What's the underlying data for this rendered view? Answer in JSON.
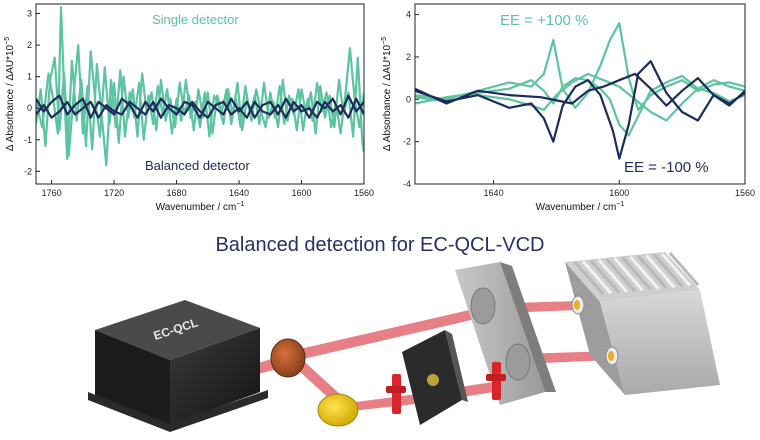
{
  "title": "Balanced detection for EC-QCL-VCD",
  "device_label": "EC-QCL",
  "colors": {
    "teal": "#5cc4a0",
    "navy": "#1e2b5c",
    "beam": "#e0555e",
    "title": "#27306b"
  },
  "chart_data": [
    {
      "type": "line",
      "xlabel": "Wavenumber / cm",
      "xlabel_sup": "−1",
      "ylabel": "Δ Absorbance / ΔAU*10",
      "ylabel_sup": "−5",
      "xlim": [
        1770,
        1560
      ],
      "ylim": [
        -2.4,
        3.3
      ],
      "x_ticks": [
        "1760",
        "1720",
        "1680",
        "1640",
        "1600",
        "1560"
      ],
      "x_tick_values": [
        1760,
        1720,
        1680,
        1640,
        1600,
        1560
      ],
      "y_ticks": [
        "3",
        "2",
        "1",
        "0",
        "-1",
        "-2"
      ],
      "y_tick_values": [
        3,
        2,
        1,
        0,
        -1,
        -2
      ],
      "annotations": [
        {
          "text": "Single detector",
          "color": "#5cc4a0"
        },
        {
          "text": "Balanced detector",
          "color": "#1e2b5c"
        }
      ],
      "series": [
        {
          "color": "#5cc4a0",
          "x": [
            1770,
            1766,
            1762,
            1759,
            1756,
            1754,
            1752,
            1750,
            1747,
            1744,
            1741,
            1738,
            1735,
            1732,
            1729,
            1726,
            1723,
            1720,
            1717,
            1714,
            1711,
            1708,
            1705,
            1702,
            1699,
            1696,
            1693,
            1690,
            1687,
            1684,
            1681,
            1678,
            1675,
            1672,
            1669,
            1666,
            1663,
            1660,
            1657,
            1654,
            1651,
            1648,
            1645,
            1642,
            1639,
            1636,
            1633,
            1630,
            1627,
            1624,
            1621,
            1618,
            1615,
            1612,
            1609,
            1606,
            1603,
            1600,
            1597,
            1594,
            1591,
            1588,
            1585,
            1582,
            1579,
            1576,
            1573,
            1570,
            1567,
            1564,
            1561,
            1560
          ],
          "y": [
            0.2,
            -0.6,
            1.1,
            0.3,
            -0.8,
            3.2,
            0.6,
            -1.6,
            1.5,
            -0.4,
            0.9,
            -1.2,
            1.8,
            0.2,
            -0.9,
            1.3,
            -0.5,
            0.8,
            -1.1,
            1.0,
            -0.3,
            0.6,
            -0.9,
            1.1,
            -0.2,
            0.5,
            -0.7,
            0.9,
            -0.4,
            0.3,
            -0.6,
            0.8,
            -0.2,
            0.4,
            -0.7,
            0.6,
            -0.3,
            0.5,
            -0.8,
            0.4,
            -0.1,
            0.6,
            -0.5,
            0.3,
            -0.6,
            0.7,
            -0.2,
            0.4,
            -0.5,
            0.8,
            -0.3,
            0.2,
            -0.6,
            0.9,
            -0.4,
            0.3,
            -0.7,
            0.6,
            -0.2,
            0.5,
            -0.8,
            0.7,
            -0.3,
            0.4,
            -0.6,
            0.9,
            -0.2,
            0.5,
            -0.9,
            1.6,
            -1.1,
            -1.4
          ]
        },
        {
          "color": "#5cc4a0",
          "x": [
            1770,
            1767,
            1764,
            1761,
            1758,
            1755,
            1752,
            1749,
            1746,
            1743,
            1740,
            1737,
            1734,
            1731,
            1728,
            1725,
            1722,
            1719,
            1716,
            1713,
            1710,
            1707,
            1704,
            1701,
            1698,
            1695,
            1692,
            1689,
            1686,
            1683,
            1680,
            1677,
            1674,
            1671,
            1668,
            1665,
            1662,
            1659,
            1656,
            1653,
            1650,
            1647,
            1644,
            1641,
            1638,
            1635,
            1632,
            1629,
            1626,
            1623,
            1620,
            1617,
            1614,
            1611,
            1608,
            1605,
            1602,
            1599,
            1596,
            1593,
            1590,
            1587,
            1584,
            1581,
            1578,
            1575,
            1572,
            1569,
            1566,
            1563,
            1560
          ],
          "y": [
            -0.5,
            0.6,
            -1.2,
            0.9,
            1.6,
            -0.7,
            1.1,
            -1.5,
            0.4,
            2.0,
            -0.8,
            0.7,
            -1.3,
            1.4,
            -0.2,
            -1.8,
            0.9,
            -0.6,
            1.2,
            -0.9,
            0.5,
            -0.3,
            0.8,
            -1.0,
            0.4,
            -0.5,
            0.7,
            -0.2,
            0.6,
            -0.8,
            0.3,
            -0.4,
            0.9,
            -0.3,
            0.2,
            -0.6,
            0.5,
            -0.9,
            0.4,
            0.1,
            -0.5,
            0.6,
            -0.2,
            0.8,
            -0.7,
            0.3,
            -0.4,
            0.6,
            -0.1,
            -0.6,
            0.5,
            -0.3,
            0.7,
            -0.5,
            0.4,
            -0.2,
            0.6,
            -0.7,
            0.3,
            -0.4,
            0.8,
            -0.1,
            0.5,
            -0.6,
            0.2,
            -0.8,
            0.4,
            1.9,
            0.3,
            -0.6,
            0.5
          ]
        },
        {
          "color": "#1e2b5c",
          "x": [
            1770,
            1765,
            1760,
            1755,
            1750,
            1745,
            1740,
            1735,
            1730,
            1725,
            1720,
            1715,
            1710,
            1705,
            1700,
            1695,
            1690,
            1685,
            1680,
            1675,
            1670,
            1665,
            1660,
            1655,
            1650,
            1645,
            1640,
            1635,
            1630,
            1625,
            1620,
            1615,
            1610,
            1605,
            1600,
            1595,
            1590,
            1585,
            1580,
            1575,
            1570,
            1565,
            1560
          ],
          "y": [
            0.3,
            -0.1,
            0.2,
            0.4,
            -0.2,
            0.1,
            0.3,
            -0.3,
            0.2,
            0.0,
            -0.2,
            0.3,
            0.1,
            -0.3,
            0.2,
            -0.1,
            0.3,
            0.0,
            -0.2,
            0.2,
            0.1,
            -0.3,
            0.2,
            0.0,
            -0.2,
            0.3,
            -0.1,
            0.2,
            -0.3,
            0.1,
            0.2,
            -0.2,
            0.3,
            -0.1,
            0.1,
            -0.3,
            0.2,
            0.0,
            0.3,
            -0.2,
            0.4,
            -0.1,
            0.2
          ]
        },
        {
          "color": "#1e2b5c",
          "x": [
            1770,
            1765,
            1760,
            1755,
            1750,
            1745,
            1740,
            1735,
            1730,
            1725,
            1720,
            1715,
            1710,
            1705,
            1700,
            1695,
            1690,
            1685,
            1680,
            1675,
            1670,
            1665,
            1660,
            1655,
            1650,
            1645,
            1640,
            1635,
            1630,
            1625,
            1620,
            1615,
            1610,
            1605,
            1600,
            1595,
            1590,
            1585,
            1580,
            1575,
            1570,
            1565,
            1560
          ],
          "y": [
            -0.2,
            0.1,
            -0.3,
            -0.1,
            0.2,
            -0.2,
            0.0,
            0.2,
            -0.3,
            0.1,
            -0.1,
            -0.2,
            0.2,
            0.0,
            -0.2,
            0.2,
            -0.3,
            0.1,
            0.0,
            -0.2,
            0.2,
            -0.1,
            -0.3,
            0.1,
            0.2,
            -0.2,
            0.0,
            -0.3,
            0.2,
            -0.1,
            -0.2,
            0.1,
            -0.3,
            0.2,
            -0.1,
            0.0,
            -0.3,
            0.2,
            -0.1,
            0.1,
            -0.3,
            0.3,
            -0.2
          ]
        }
      ]
    },
    {
      "type": "line",
      "xlabel": "Wavenumber / cm",
      "xlabel_sup": "−1",
      "ylabel": "Δ Absorbance / ΔAU*10",
      "ylabel_sup": "−5",
      "xlim": [
        1665,
        1560
      ],
      "ylim": [
        -4,
        4.5
      ],
      "x_ticks": [
        "1640",
        "1600",
        "1560"
      ],
      "x_tick_values": [
        1640,
        1600,
        1560
      ],
      "y_ticks": [
        "4",
        "2",
        "0",
        "-2",
        "-4"
      ],
      "y_tick_values": [
        4,
        2,
        0,
        -2,
        -4
      ],
      "annotations": [
        {
          "text": "EE = +100 %",
          "color": "#5cc4a0"
        },
        {
          "text": "EE = -100 %",
          "color": "#1e2b5c"
        }
      ],
      "series": [
        {
          "color": "#5cc4a0",
          "x": [
            1665,
            1655,
            1645,
            1635,
            1628,
            1624,
            1621,
            1618,
            1614,
            1610,
            1606,
            1603,
            1600,
            1597,
            1594,
            1590,
            1585,
            1580,
            1575,
            1570,
            1565,
            1560
          ],
          "y": [
            0.2,
            0.0,
            0.4,
            0.8,
            0.6,
            1.2,
            2.8,
            0.5,
            -0.4,
            0.3,
            1.6,
            2.8,
            3.6,
            1.0,
            -0.5,
            0.2,
            0.6,
            0.9,
            0.4,
            0.7,
            0.8,
            0.6
          ]
        },
        {
          "color": "#5cc4a0",
          "x": [
            1665,
            1655,
            1645,
            1635,
            1628,
            1624,
            1621,
            1618,
            1614,
            1610,
            1606,
            1603,
            1600,
            1597,
            1594,
            1590,
            1585,
            1580,
            1575,
            1570,
            1565,
            1560
          ],
          "y": [
            -0.2,
            0.1,
            0.3,
            0.5,
            0.9,
            0.4,
            -0.2,
            0.6,
            1.0,
            0.9,
            0.5,
            0.0,
            -1.2,
            -1.7,
            -0.8,
            0.4,
            0.8,
            1.1,
            0.5,
            0.9,
            0.6,
            0.4
          ]
        },
        {
          "color": "#5cc4a0",
          "x": [
            1665,
            1655,
            1645,
            1635,
            1628,
            1624,
            1620,
            1615,
            1610,
            1605,
            1600,
            1595,
            1590,
            1585,
            1580,
            1575,
            1570,
            1565,
            1560
          ],
          "y": [
            0.1,
            -0.1,
            0.2,
            0.0,
            -0.3,
            -0.5,
            0.2,
            0.8,
            1.2,
            0.9,
            0.6,
            0.0,
            -0.6,
            -1.0,
            -0.2,
            0.5,
            0.3,
            -0.1,
            0.2
          ]
        },
        {
          "color": "#1e2b5c",
          "x": [
            1665,
            1655,
            1645,
            1635,
            1628,
            1624,
            1621,
            1618,
            1614,
            1610,
            1606,
            1602,
            1600,
            1597,
            1594,
            1590,
            1585,
            1580,
            1575,
            1570,
            1565,
            1560
          ],
          "y": [
            0.4,
            -0.1,
            0.2,
            -0.4,
            -0.2,
            -0.9,
            -2.0,
            -0.3,
            0.6,
            0.9,
            0.2,
            -1.5,
            -2.8,
            -1.2,
            1.2,
            1.8,
            0.3,
            -0.6,
            -1.0,
            0.2,
            -0.3,
            0.4
          ]
        },
        {
          "color": "#1e2b5c",
          "x": [
            1665,
            1655,
            1645,
            1635,
            1625,
            1615,
            1610,
            1605,
            1600,
            1595,
            1590,
            1585,
            1580,
            1575,
            1570,
            1565,
            1560
          ],
          "y": [
            0.5,
            -0.2,
            0.4,
            0.2,
            0.1,
            -0.2,
            0.4,
            0.6,
            0.9,
            1.2,
            0.5,
            -0.3,
            0.4,
            1.0,
            0.2,
            -0.2,
            0.3
          ]
        }
      ]
    }
  ]
}
